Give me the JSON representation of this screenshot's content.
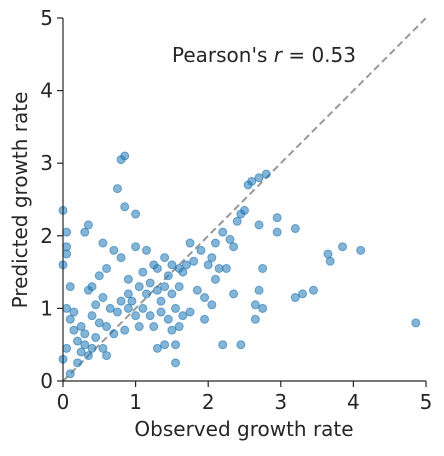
{
  "chart_data": {
    "type": "scatter",
    "annotation": {
      "prefix": "Pearson's ",
      "symbol": "r",
      "suffix": " = 0.53"
    },
    "x_label": "Observed growth rate",
    "y_label": "Predicted growth rate",
    "xlim": [
      0,
      5
    ],
    "ylim": [
      0,
      5
    ],
    "xticks": [
      0,
      1,
      2,
      3,
      4,
      5
    ],
    "yticks": [
      0,
      1,
      2,
      3,
      4,
      5
    ],
    "identity_line": true,
    "color": "#1f77b4",
    "x": [
      4.86,
      4.1,
      3.85,
      3.65,
      3.68,
      3.45,
      3.3,
      3.2,
      3.2,
      2.95,
      2.95,
      2.75,
      2.7,
      2.75,
      2.65,
      2.65,
      2.7,
      2.45,
      2.2,
      1.95,
      1.55,
      1.55,
      1.4,
      1.3,
      0.8,
      0.85,
      0.75,
      0.85,
      1.0,
      0.0,
      0.05,
      0.35,
      0.3,
      0.55,
      0.05,
      0.05,
      2.5,
      2.45,
      2.55,
      2.6,
      2.7,
      2.8,
      2.4,
      2.3,
      2.35,
      2.2,
      2.1,
      2.05,
      2.0,
      1.9,
      1.8,
      1.7,
      1.6,
      1.75,
      1.65,
      2.25,
      2.15,
      2.1,
      1.85,
      1.95,
      2.05,
      1.75,
      1.65,
      1.6,
      1.5,
      1.25,
      1.2,
      1.1,
      1.0,
      0.95,
      1.15,
      1.2,
      1.3,
      1.35,
      1.4,
      1.45,
      1.5,
      1.3,
      1.25,
      1.1,
      1.05,
      0.9,
      0.8,
      0.7,
      1.0,
      1.15,
      0.6,
      0.5,
      0.4,
      0.35,
      0.55,
      0.65,
      0.75,
      0.85,
      0.7,
      0.6,
      0.5,
      0.45,
      0.4,
      0.35,
      0.3,
      0.25,
      0.2,
      0.15,
      0.1,
      0.05,
      0.0,
      0.05,
      0.15,
      0.25,
      0.3,
      0.4,
      0.45,
      0.55,
      0.6,
      0.2,
      0.1,
      0.9,
      1.05,
      1.35,
      1.45,
      1.55,
      1.6,
      1.5,
      1.4,
      0.9,
      0.8,
      0.1,
      0.0,
      2.35
    ],
    "y": [
      0.8,
      1.8,
      1.85,
      1.75,
      1.65,
      1.25,
      1.2,
      1.15,
      2.1,
      2.25,
      2.05,
      1.55,
      1.25,
      1.0,
      1.05,
      0.85,
      2.15,
      0.5,
      0.5,
      0.85,
      0.25,
      0.5,
      0.5,
      0.45,
      3.05,
      3.1,
      2.65,
      2.4,
      2.3,
      2.35,
      2.05,
      2.15,
      2.05,
      1.9,
      1.75,
      1.85,
      2.35,
      2.3,
      2.7,
      2.75,
      2.8,
      2.85,
      2.2,
      1.95,
      1.85,
      2.05,
      1.9,
      1.7,
      1.6,
      1.8,
      1.65,
      1.6,
      1.55,
      1.9,
      1.5,
      1.55,
      1.55,
      1.4,
      1.25,
      1.15,
      1.05,
      0.95,
      0.9,
      0.75,
      0.7,
      0.75,
      0.9,
      1.0,
      0.9,
      1.1,
      1.2,
      1.35,
      1.25,
      1.1,
      1.3,
      1.45,
      1.2,
      1.55,
      1.6,
      1.5,
      1.3,
      1.4,
      1.7,
      1.8,
      1.85,
      1.8,
      1.55,
      1.45,
      1.3,
      1.25,
      1.15,
      1.0,
      0.95,
      0.7,
      0.65,
      0.75,
      0.8,
      0.6,
      0.45,
      0.35,
      0.5,
      0.4,
      0.55,
      0.7,
      0.85,
      1.0,
      0.3,
      0.45,
      0.95,
      0.75,
      0.65,
      0.9,
      1.05,
      0.45,
      0.35,
      0.25,
      0.1,
      1.0,
      0.75,
      0.95,
      0.85,
      1.0,
      1.3,
      1.6,
      1.7,
      1.2,
      1.1,
      1.3,
      1.6,
      1.2
    ]
  }
}
